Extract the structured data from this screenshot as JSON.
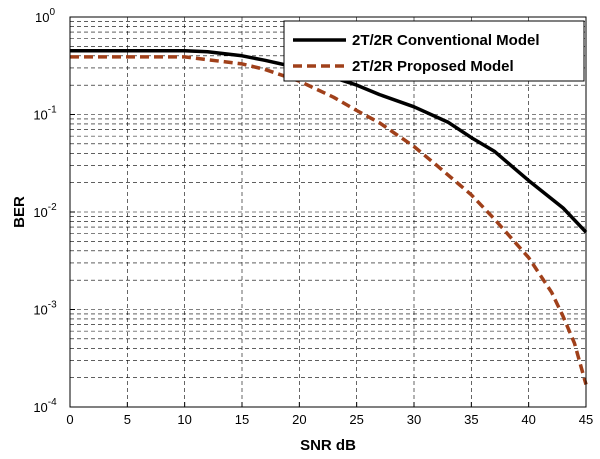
{
  "chart_data": {
    "type": "line",
    "xlabel": "SNR dB",
    "ylabel": "BER",
    "xlim": [
      0,
      45
    ],
    "ylim": [
      0.0001,
      1
    ],
    "yscale": "log",
    "grid": true,
    "legend": "top-right",
    "x_ticks": [
      "0",
      "5",
      "10",
      "15",
      "20",
      "25",
      "30",
      "35",
      "40",
      "45"
    ],
    "y_ticks": [
      {
        "base": "10",
        "exp": "0"
      },
      {
        "base": "10",
        "exp": "-1"
      },
      {
        "base": "10",
        "exp": "-2"
      },
      {
        "base": "10",
        "exp": "-3"
      },
      {
        "base": "10",
        "exp": "-4"
      }
    ],
    "series": [
      {
        "name": "2T/2R Conventional Model",
        "color": "#000000",
        "style": "solid",
        "x": [
          0,
          5,
          10,
          12,
          15,
          17,
          20,
          22,
          25,
          27,
          30,
          33,
          35,
          37,
          40,
          43,
          45
        ],
        "y": [
          0.45,
          0.45,
          0.45,
          0.44,
          0.4,
          0.36,
          0.3,
          0.26,
          0.2,
          0.16,
          0.12,
          0.083,
          0.058,
          0.042,
          0.021,
          0.011,
          0.0062
        ]
      },
      {
        "name": "2T/2R Proposed Model",
        "color": "#A0401A",
        "style": "dashed",
        "x": [
          0,
          5,
          10,
          15,
          17,
          20,
          23,
          25,
          27,
          30,
          32,
          35,
          37,
          40,
          42,
          43,
          44,
          45
        ],
        "y": [
          0.39,
          0.39,
          0.39,
          0.33,
          0.29,
          0.22,
          0.15,
          0.11,
          0.082,
          0.047,
          0.03,
          0.015,
          0.0085,
          0.0034,
          0.0015,
          0.00085,
          0.00045,
          0.00017
        ]
      }
    ]
  }
}
